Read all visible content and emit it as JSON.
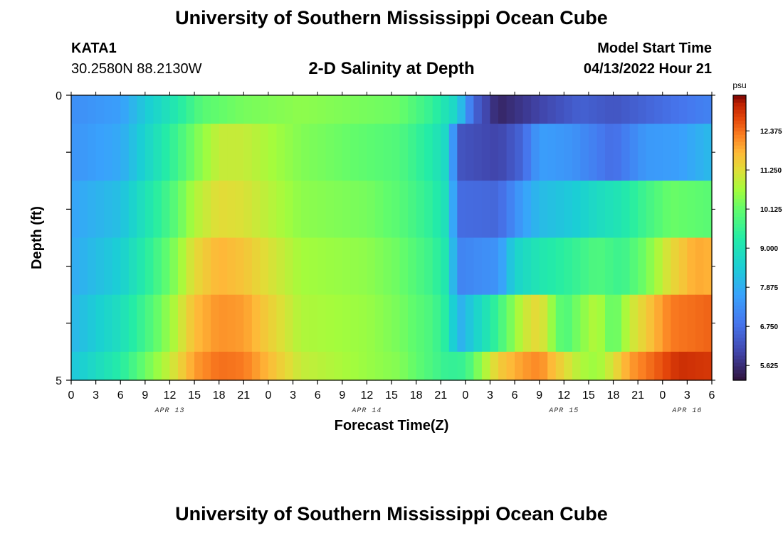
{
  "header": {
    "title": "University of Southern Mississippi Ocean Cube",
    "station": "KATA1",
    "coordinates": "30.2580N  88.2130W",
    "subtitle": "2-D Salinity at Depth",
    "model_start_label": "Model Start Time",
    "model_start_value": "04/13/2022 Hour 21"
  },
  "footer": {
    "title": "University of Southern Mississippi Ocean Cube"
  },
  "chart_data": {
    "type": "heatmap",
    "title": "2-D Salinity at Depth",
    "xlabel": "Forecast Time(Z)",
    "ylabel": "Depth (ft)",
    "x_tick_labels": [
      "0",
      "3",
      "6",
      "9",
      "12",
      "15",
      "18",
      "21",
      "0",
      "3",
      "6",
      "9",
      "12",
      "15",
      "18",
      "21",
      "0",
      "3",
      "6",
      "9",
      "12",
      "15",
      "18",
      "21",
      "0",
      "3",
      "6"
    ],
    "date_labels": [
      {
        "label": "APR 13",
        "hour": 12
      },
      {
        "label": "APR 14",
        "hour": 36
      },
      {
        "label": "APR 15",
        "hour": 60
      },
      {
        "label": "APR 16",
        "hour": 75
      }
    ],
    "x_range_hours": [
      0,
      78
    ],
    "y_tick_labels": [
      "0",
      "5"
    ],
    "y_range_ft": [
      0,
      5
    ],
    "depth_layers_ft": [
      [
        0,
        0.5
      ],
      [
        0.5,
        1.5
      ],
      [
        1.5,
        2.5
      ],
      [
        2.5,
        3.5
      ],
      [
        3.5,
        4.5
      ],
      [
        4.5,
        5
      ]
    ],
    "colorbar": {
      "unit": "psu",
      "range": [
        5.2,
        13.4
      ],
      "tick_labels": [
        "5.625",
        "6.750",
        "7.875",
        "9.000",
        "10.125",
        "11.250",
        "12.375"
      ],
      "tick_values": [
        5.625,
        6.75,
        7.875,
        9.0,
        10.125,
        11.25,
        12.375
      ]
    },
    "layer_profiles": [
      {
        "depth_layer": "0-0.5",
        "keyframes": [
          [
            0,
            7.3
          ],
          [
            6,
            7.6
          ],
          [
            9,
            8.4
          ],
          [
            12,
            9.0
          ],
          [
            16,
            10.0
          ],
          [
            21,
            10.3
          ],
          [
            28,
            10.5
          ],
          [
            40,
            10.2
          ],
          [
            44,
            9.5
          ],
          [
            47,
            8.6
          ],
          [
            49,
            6.6
          ],
          [
            52,
            5.5
          ],
          [
            57,
            6.0
          ],
          [
            62,
            6.5
          ],
          [
            66,
            6.3
          ],
          [
            72,
            6.7
          ],
          [
            78,
            7.1
          ]
        ]
      },
      {
        "depth_layer": "0.5-1.5",
        "keyframes": [
          [
            0,
            7.4
          ],
          [
            6,
            7.8
          ],
          [
            9,
            8.6
          ],
          [
            12,
            9.4
          ],
          [
            15,
            10.3
          ],
          [
            18,
            11.0
          ],
          [
            21,
            11.0
          ],
          [
            28,
            10.4
          ],
          [
            40,
            9.9
          ],
          [
            44,
            9.2
          ],
          [
            46,
            8.6
          ],
          [
            47,
            6.3
          ],
          [
            52,
            6.0
          ],
          [
            55,
            6.6
          ],
          [
            57,
            7.6
          ],
          [
            61,
            7.4
          ],
          [
            66,
            6.7
          ],
          [
            70,
            7.5
          ],
          [
            74,
            7.6
          ],
          [
            78,
            8.1
          ]
        ]
      },
      {
        "depth_layer": "1.5-2.5",
        "keyframes": [
          [
            0,
            7.7
          ],
          [
            6,
            8.2
          ],
          [
            9,
            9.0
          ],
          [
            12,
            9.8
          ],
          [
            15,
            10.8
          ],
          [
            18,
            11.3
          ],
          [
            21,
            11.2
          ],
          [
            28,
            10.5
          ],
          [
            36,
            10.3
          ],
          [
            40,
            10.0
          ],
          [
            44,
            9.4
          ],
          [
            46,
            8.8
          ],
          [
            47,
            6.7
          ],
          [
            52,
            6.6
          ],
          [
            55,
            7.6
          ],
          [
            57,
            8.1
          ],
          [
            61,
            8.4
          ],
          [
            64,
            8.8
          ],
          [
            67,
            9.1
          ],
          [
            70,
            9.7
          ],
          [
            73,
            10.2
          ],
          [
            78,
            10.0
          ]
        ]
      },
      {
        "depth_layer": "2.5-3.5",
        "keyframes": [
          [
            0,
            7.8
          ],
          [
            6,
            8.5
          ],
          [
            9,
            9.3
          ],
          [
            12,
            10.2
          ],
          [
            15,
            11.3
          ],
          [
            18,
            11.8
          ],
          [
            21,
            11.6
          ],
          [
            28,
            10.7
          ],
          [
            36,
            10.5
          ],
          [
            40,
            10.2
          ],
          [
            44,
            9.6
          ],
          [
            46,
            9.0
          ],
          [
            47,
            7.1
          ],
          [
            52,
            7.4
          ],
          [
            54,
            8.6
          ],
          [
            57,
            9.1
          ],
          [
            61,
            9.5
          ],
          [
            64,
            9.9
          ],
          [
            67,
            9.6
          ],
          [
            70,
            10.3
          ],
          [
            73,
            11.3
          ],
          [
            76,
            11.9
          ],
          [
            78,
            11.8
          ]
        ]
      },
      {
        "depth_layer": "3.5-4.5",
        "keyframes": [
          [
            0,
            8.0
          ],
          [
            6,
            8.9
          ],
          [
            9,
            9.7
          ],
          [
            12,
            10.6
          ],
          [
            15,
            11.7
          ],
          [
            18,
            12.1
          ],
          [
            21,
            12.0
          ],
          [
            28,
            10.8
          ],
          [
            36,
            10.6
          ],
          [
            40,
            10.3
          ],
          [
            44,
            9.8
          ],
          [
            46,
            9.2
          ],
          [
            47,
            7.8
          ],
          [
            49,
            8.5
          ],
          [
            51,
            9.2
          ],
          [
            53,
            10.1
          ],
          [
            55,
            11.0
          ],
          [
            57,
            11.4
          ],
          [
            59,
            10.3
          ],
          [
            60,
            9.8
          ],
          [
            62,
            10.4
          ],
          [
            64,
            10.9
          ],
          [
            66,
            10.0
          ],
          [
            68,
            11.0
          ],
          [
            70,
            11.5
          ],
          [
            73,
            12.3
          ],
          [
            78,
            12.5
          ]
        ]
      },
      {
        "depth_layer": "4.5-5",
        "keyframes": [
          [
            0,
            8.3
          ],
          [
            6,
            9.3
          ],
          [
            9,
            10.2
          ],
          [
            12,
            11.0
          ],
          [
            15,
            12.0
          ],
          [
            18,
            12.4
          ],
          [
            21,
            12.3
          ],
          [
            28,
            11.0
          ],
          [
            36,
            10.6
          ],
          [
            40,
            10.4
          ],
          [
            44,
            9.8
          ],
          [
            46,
            9.5
          ],
          [
            48,
            9.6
          ],
          [
            50,
            10.6
          ],
          [
            52,
            11.5
          ],
          [
            55,
            12.0
          ],
          [
            57,
            12.2
          ],
          [
            59,
            11.6
          ],
          [
            62,
            10.8
          ],
          [
            64,
            10.6
          ],
          [
            66,
            11.2
          ],
          [
            68,
            12.0
          ],
          [
            71,
            12.5
          ],
          [
            74,
            13.0
          ],
          [
            78,
            12.9
          ]
        ]
      }
    ]
  }
}
